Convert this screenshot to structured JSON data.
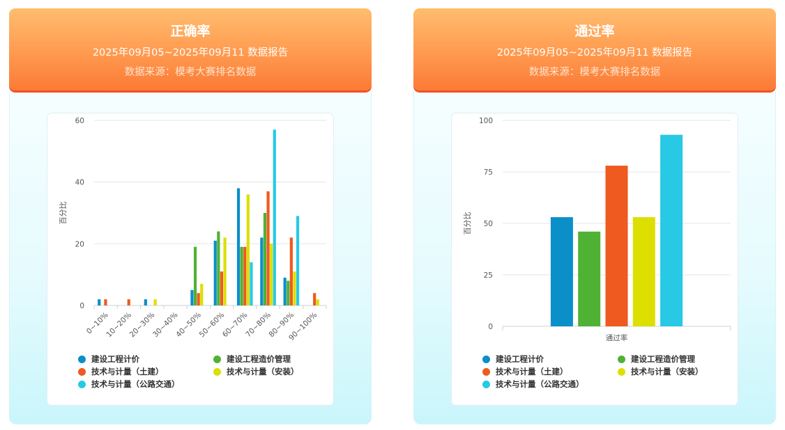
{
  "left_card": {
    "title": "正确率",
    "subtitle": "2025年09月05~2025年09月11 数据报告",
    "source": "数据来源：模考大赛排名数据"
  },
  "right_card": {
    "title": "通过率",
    "subtitle": "2025年09月05~2025年09月11 数据报告",
    "source": "数据来源：模考大赛排名数据"
  },
  "chart_data": [
    {
      "type": "bar",
      "title": "",
      "xlabel": "",
      "ylabel": "百分比",
      "ylim": [
        0,
        60
      ],
      "yticks": [
        "0",
        "20",
        "40",
        "60"
      ],
      "categories": [
        "0~10%",
        "10~20%",
        "20~30%",
        "30~40%",
        "40~50%",
        "50~60%",
        "60~70%",
        "70~80%",
        "80~90%",
        "90~100%"
      ],
      "series": [
        {
          "name": "建设工程计价",
          "color": "#0a8fc9",
          "values": [
            2,
            0,
            2,
            0,
            5,
            21,
            38,
            22,
            9,
            0
          ]
        },
        {
          "name": "建设工程造价管理",
          "color": "#50b234",
          "values": [
            0,
            0,
            0,
            0,
            19,
            24,
            19,
            30,
            8,
            0
          ]
        },
        {
          "name": "技术与计量（土建）",
          "color": "#ee5a1f",
          "values": [
            2,
            2,
            0,
            0,
            4,
            11,
            19,
            37,
            22,
            4
          ]
        },
        {
          "name": "技术与计量（安装）",
          "color": "#dddf00",
          "values": [
            0,
            0,
            2,
            0,
            7,
            22,
            36,
            20,
            11,
            2
          ]
        },
        {
          "name": "技术与计量（公路交通）",
          "color": "#27c9e4",
          "values": [
            0,
            0,
            0,
            0,
            0,
            0,
            14,
            57,
            29,
            0
          ]
        }
      ],
      "grid": true,
      "legend": "bottom"
    },
    {
      "type": "bar",
      "title": "",
      "xlabel": "通过率",
      "ylabel": "百分比",
      "ylim": [
        0,
        100
      ],
      "yticks": [
        "0",
        "25",
        "50",
        "75",
        "100"
      ],
      "categories": [
        "通过率"
      ],
      "series": [
        {
          "name": "建设工程计价",
          "color": "#0a8fc9",
          "values": [
            53
          ]
        },
        {
          "name": "建设工程造价管理",
          "color": "#50b234",
          "values": [
            46
          ]
        },
        {
          "name": "技术与计量（土建）",
          "color": "#ee5a1f",
          "values": [
            78
          ]
        },
        {
          "name": "技术与计量（安装）",
          "color": "#dddf00",
          "values": [
            53
          ]
        },
        {
          "name": "技术与计量（公路交通）",
          "color": "#27c9e4",
          "values": [
            93
          ]
        }
      ],
      "grid": true,
      "legend": "bottom"
    }
  ]
}
